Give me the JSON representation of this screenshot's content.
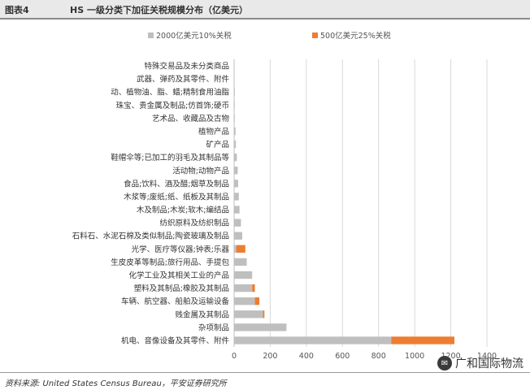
{
  "header": {
    "figure_label": "图表4",
    "title": "HS 一级分类下加征关税规模分布（亿美元）"
  },
  "chart_data": {
    "type": "bar",
    "orientation": "horizontal",
    "stacked": true,
    "title": "",
    "xlabel": "",
    "ylabel": "",
    "xlim": [
      0,
      1400
    ],
    "xticks": [
      0,
      200,
      400,
      600,
      800,
      1000,
      1200,
      1400
    ],
    "grid": true,
    "legend_position": "top",
    "categories": [
      "特殊交易品及未分类商品",
      "武器、弹药及其零件、附件",
      "动、植物油、脂、蜡;精制食用油脂",
      "珠宝、贵金属及制品;仿首饰;硬币",
      "艺术品、收藏品及古物",
      "植物产品",
      "矿产品",
      "鞋帽伞等;已加工的羽毛及其制品等",
      "活动物;动物产品",
      "食品;饮料、酒及醋;烟草及制品",
      "木浆等;废纸;纸、纸板及其制品",
      "木及制品;木炭;软木;编结品",
      "纺织原料及纺织制品",
      "石料石、水泥石棉及类似制品;陶瓷玻璃及制品",
      "光学、医疗等仪器;钟表;乐器",
      "生皮皮革等制品;旅行用品、手提包",
      "化学工业及其相关工业的产品",
      "塑料及其制品;橡胶及其制品",
      "车辆、航空器、船舶及运输设备",
      "贱金属及其制品",
      "杂项制品",
      "机电、音像设备及其零件、附件"
    ],
    "series": [
      {
        "name": "2000亿美元10%关税",
        "color": "#bfbfbf",
        "values": [
          0,
          0,
          1,
          1,
          2,
          8,
          10,
          15,
          20,
          22,
          26,
          30,
          38,
          45,
          12,
          70,
          100,
          100,
          115,
          160,
          290,
          870
        ]
      },
      {
        "name": "500亿美元25%关税",
        "color": "#ed7d31",
        "values": [
          0,
          0,
          0,
          0,
          0,
          0,
          0,
          0,
          0,
          0,
          0,
          0,
          0,
          0,
          50,
          0,
          0,
          15,
          25,
          8,
          0,
          350
        ]
      }
    ]
  },
  "footer": {
    "source": "资料来源: United States Census Bureau，平安证券研究所",
    "watermark": "广和国际物流"
  }
}
